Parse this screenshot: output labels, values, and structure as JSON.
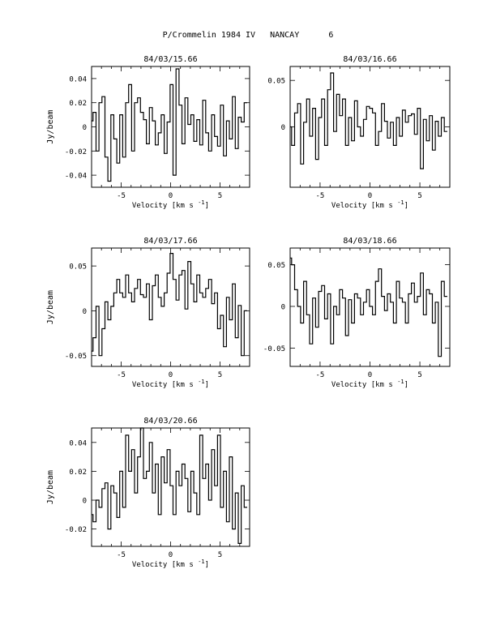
{
  "page": {
    "title": "P/Crommelin 1984 IV   NANCAY      6"
  },
  "chart_data": [
    {
      "type": "line",
      "title": "84/03/15.66",
      "xlabel": "Velocity [km s",
      "xlabel_sup": "-1",
      "xlabel_end": "]",
      "ylabel": "Jy/beam",
      "xlim": [
        -8,
        8
      ],
      "ylim": [
        -0.05,
        0.05
      ],
      "xticks": [
        -5,
        0,
        5
      ],
      "xtick_labels": [
        "-5",
        "0",
        "5"
      ],
      "yticks": [
        0.04,
        0.02,
        0,
        -0.02,
        -0.04
      ],
      "ytick_labels": [
        "0.04",
        "0.02",
        "0",
        "-0.02",
        "-0.04"
      ],
      "step": "histogram",
      "x": [
        -8.0,
        -7.7,
        -7.4,
        -7.1,
        -6.8,
        -6.5,
        -6.2,
        -5.9,
        -5.6,
        -5.3,
        -5.0,
        -4.7,
        -4.4,
        -4.1,
        -3.8,
        -3.5,
        -3.2,
        -2.9,
        -2.6,
        -2.3,
        -2.0,
        -1.7,
        -1.4,
        -1.1,
        -0.8,
        -0.5,
        -0.2,
        0.1,
        0.4,
        0.7,
        1.0,
        1.3,
        1.6,
        1.9,
        2.2,
        2.5,
        2.8,
        3.1,
        3.4,
        3.7,
        4.0,
        4.3,
        4.6,
        4.9,
        5.2,
        5.5,
        5.8,
        6.1,
        6.4,
        6.7,
        7.0,
        7.3,
        7.6
      ],
      "y": [
        0.005,
        0.012,
        -0.02,
        0.02,
        0.025,
        -0.025,
        -0.045,
        0.01,
        -0.01,
        -0.03,
        0.01,
        -0.025,
        0.02,
        0.035,
        -0.02,
        0.02,
        0.024,
        0.012,
        0.006,
        -0.014,
        0.016,
        0.005,
        -0.015,
        -0.005,
        0.01,
        -0.022,
        0.004,
        0.035,
        -0.04,
        0.048,
        0.018,
        -0.014,
        0.024,
        0.002,
        0.01,
        -0.012,
        0.006,
        -0.015,
        0.022,
        -0.005,
        -0.02,
        0.01,
        -0.008,
        -0.016,
        0.018,
        -0.024,
        0.005,
        -0.01,
        0.025,
        -0.018,
        0.008,
        0.004,
        0.02
      ]
    },
    {
      "type": "line",
      "title": "84/03/16.66",
      "xlabel": "Velocity [km s",
      "xlabel_sup": "-1",
      "xlabel_end": "]",
      "ylabel": "",
      "xlim": [
        -8,
        8
      ],
      "ylim": [
        -0.065,
        0.065
      ],
      "xticks": [
        -5,
        0,
        5
      ],
      "xtick_labels": [
        "-5",
        "0",
        "5"
      ],
      "yticks": [
        0.05,
        0
      ],
      "ytick_labels": [
        "0.05",
        "0"
      ],
      "step": "histogram",
      "x": [
        -8.0,
        -7.7,
        -7.4,
        -7.1,
        -6.8,
        -6.5,
        -6.2,
        -5.9,
        -5.6,
        -5.3,
        -5.0,
        -4.7,
        -4.4,
        -4.1,
        -3.8,
        -3.5,
        -3.2,
        -2.9,
        -2.6,
        -2.3,
        -2.0,
        -1.7,
        -1.4,
        -1.1,
        -0.8,
        -0.5,
        -0.2,
        0.1,
        0.4,
        0.7,
        1.0,
        1.3,
        1.6,
        1.9,
        2.2,
        2.5,
        2.8,
        3.1,
        3.4,
        3.7,
        4.0,
        4.3,
        4.6,
        4.9,
        5.2,
        5.5,
        5.8,
        6.1,
        6.4,
        6.7,
        7.0,
        7.3,
        7.6
      ],
      "y": [
        0.0,
        -0.02,
        0.015,
        0.025,
        -0.04,
        0.005,
        0.03,
        -0.01,
        0.02,
        -0.035,
        0.01,
        0.03,
        -0.02,
        0.04,
        0.058,
        -0.005,
        0.035,
        0.012,
        0.03,
        -0.02,
        0.01,
        -0.015,
        0.028,
        0.0,
        -0.01,
        0.008,
        0.022,
        0.02,
        0.015,
        -0.02,
        -0.005,
        0.025,
        0.006,
        -0.012,
        0.005,
        -0.02,
        0.01,
        -0.01,
        0.018,
        0.005,
        0.012,
        0.014,
        -0.008,
        0.02,
        -0.045,
        0.008,
        -0.015,
        0.012,
        -0.025,
        0.006,
        -0.01,
        0.01,
        -0.005
      ]
    },
    {
      "type": "line",
      "title": "84/03/17.66",
      "xlabel": "Velocity [km s",
      "xlabel_sup": "-1",
      "xlabel_end": "]",
      "ylabel": "Jy/beam",
      "xlim": [
        -8,
        8
      ],
      "ylim": [
        -0.062,
        0.07
      ],
      "xticks": [
        -5,
        0,
        5
      ],
      "xtick_labels": [
        "-5",
        "0",
        "5"
      ],
      "yticks": [
        0.05,
        0,
        -0.05
      ],
      "ytick_labels": [
        "0.05",
        "0",
        "-0.05"
      ],
      "step": "histogram",
      "x": [
        -8.0,
        -7.7,
        -7.4,
        -7.1,
        -6.8,
        -6.5,
        -6.2,
        -5.9,
        -5.6,
        -5.3,
        -5.0,
        -4.7,
        -4.4,
        -4.1,
        -3.8,
        -3.5,
        -3.2,
        -2.9,
        -2.6,
        -2.3,
        -2.0,
        -1.7,
        -1.4,
        -1.1,
        -0.8,
        -0.5,
        -0.2,
        0.1,
        0.4,
        0.7,
        1.0,
        1.3,
        1.6,
        1.9,
        2.2,
        2.5,
        2.8,
        3.1,
        3.4,
        3.7,
        4.0,
        4.3,
        4.6,
        4.9,
        5.2,
        5.5,
        5.8,
        6.1,
        6.4,
        6.7,
        7.0,
        7.3,
        7.6
      ],
      "y": [
        -0.045,
        -0.03,
        0.005,
        -0.05,
        -0.02,
        0.01,
        -0.01,
        0.005,
        0.02,
        0.035,
        0.02,
        0.015,
        0.04,
        0.02,
        0.01,
        0.025,
        0.035,
        0.018,
        0.015,
        0.03,
        -0.01,
        0.028,
        0.04,
        0.015,
        0.005,
        0.02,
        0.042,
        0.064,
        0.035,
        0.012,
        0.04,
        0.045,
        0.002,
        0.055,
        0.03,
        0.01,
        0.04,
        0.02,
        0.015,
        0.025,
        0.035,
        0.008,
        0.02,
        -0.02,
        -0.005,
        -0.04,
        0.015,
        -0.01,
        0.03,
        -0.03,
        0.006,
        -0.05,
        0.0
      ]
    },
    {
      "type": "line",
      "title": "84/03/18.66",
      "xlabel": "Velocity [km s",
      "xlabel_sup": "-1",
      "xlabel_end": "]",
      "ylabel": "",
      "xlim": [
        -8,
        8
      ],
      "ylim": [
        -0.072,
        0.07
      ],
      "xticks": [
        -5,
        0,
        5
      ],
      "xtick_labels": [
        "-5",
        "0",
        "5"
      ],
      "yticks": [
        0.05,
        0,
        -0.05
      ],
      "ytick_labels": [
        "0.05",
        "0",
        "-0.05"
      ],
      "step": "histogram",
      "x": [
        -8.0,
        -7.7,
        -7.4,
        -7.1,
        -6.8,
        -6.5,
        -6.2,
        -5.9,
        -5.6,
        -5.3,
        -5.0,
        -4.7,
        -4.4,
        -4.1,
        -3.8,
        -3.5,
        -3.2,
        -2.9,
        -2.6,
        -2.3,
        -2.0,
        -1.7,
        -1.4,
        -1.1,
        -0.8,
        -0.5,
        -0.2,
        0.1,
        0.4,
        0.7,
        1.0,
        1.3,
        1.6,
        1.9,
        2.2,
        2.5,
        2.8,
        3.1,
        3.4,
        3.7,
        4.0,
        4.3,
        4.6,
        4.9,
        5.2,
        5.5,
        5.8,
        6.1,
        6.4,
        6.7,
        7.0,
        7.3,
        7.6
      ],
      "y": [
        0.058,
        0.05,
        0.02,
        0.0,
        -0.02,
        0.03,
        -0.01,
        -0.045,
        0.01,
        -0.025,
        0.018,
        0.025,
        -0.015,
        0.015,
        -0.045,
        0.0,
        -0.01,
        0.02,
        0.01,
        -0.035,
        0.008,
        -0.02,
        0.015,
        0.01,
        -0.01,
        0.005,
        0.02,
        0.0,
        -0.01,
        0.03,
        0.045,
        0.012,
        -0.005,
        0.015,
        0.005,
        -0.02,
        0.03,
        0.01,
        0.005,
        -0.02,
        0.015,
        0.028,
        0.005,
        0.012,
        0.04,
        -0.01,
        0.02,
        0.015,
        -0.02,
        0.005,
        -0.06,
        0.03,
        0.012
      ]
    },
    {
      "type": "line",
      "title": "84/03/20.66",
      "xlabel": "Velocity [km s",
      "xlabel_sup": "-1",
      "xlabel_end": "]",
      "ylabel": "Jy/beam",
      "xlim": [
        -8,
        8
      ],
      "ylim": [
        -0.032,
        0.05
      ],
      "xticks": [
        -5,
        0,
        5
      ],
      "xtick_labels": [
        "-5",
        "0",
        "5"
      ],
      "yticks": [
        0.04,
        0.02,
        0,
        -0.02
      ],
      "ytick_labels": [
        "0.04",
        "0.02",
        "0",
        "-0.02"
      ],
      "step": "histogram",
      "x": [
        -8.0,
        -7.7,
        -7.4,
        -7.1,
        -6.8,
        -6.5,
        -6.2,
        -5.9,
        -5.6,
        -5.3,
        -5.0,
        -4.7,
        -4.4,
        -4.1,
        -3.8,
        -3.5,
        -3.2,
        -2.9,
        -2.6,
        -2.3,
        -2.0,
        -1.7,
        -1.4,
        -1.1,
        -0.8,
        -0.5,
        -0.2,
        0.1,
        0.4,
        0.7,
        1.0,
        1.3,
        1.6,
        1.9,
        2.2,
        2.5,
        2.8,
        3.1,
        3.4,
        3.7,
        4.0,
        4.3,
        4.6,
        4.9,
        5.2,
        5.5,
        5.8,
        6.1,
        6.4,
        6.7,
        7.0,
        7.3,
        7.6
      ],
      "y": [
        -0.01,
        -0.015,
        0.0,
        -0.005,
        0.008,
        0.012,
        -0.02,
        0.01,
        0.005,
        -0.012,
        0.02,
        -0.005,
        0.045,
        0.02,
        0.035,
        0.005,
        0.03,
        0.05,
        0.015,
        0.02,
        0.04,
        0.005,
        0.025,
        -0.01,
        0.03,
        0.012,
        0.035,
        0.01,
        -0.01,
        0.02,
        0.01,
        0.025,
        0.015,
        -0.008,
        0.02,
        0.005,
        -0.01,
        0.045,
        0.015,
        0.025,
        0.0,
        0.035,
        0.01,
        0.045,
        -0.005,
        0.02,
        -0.015,
        0.03,
        -0.02,
        0.005,
        -0.03,
        0.01,
        -0.005
      ]
    }
  ]
}
